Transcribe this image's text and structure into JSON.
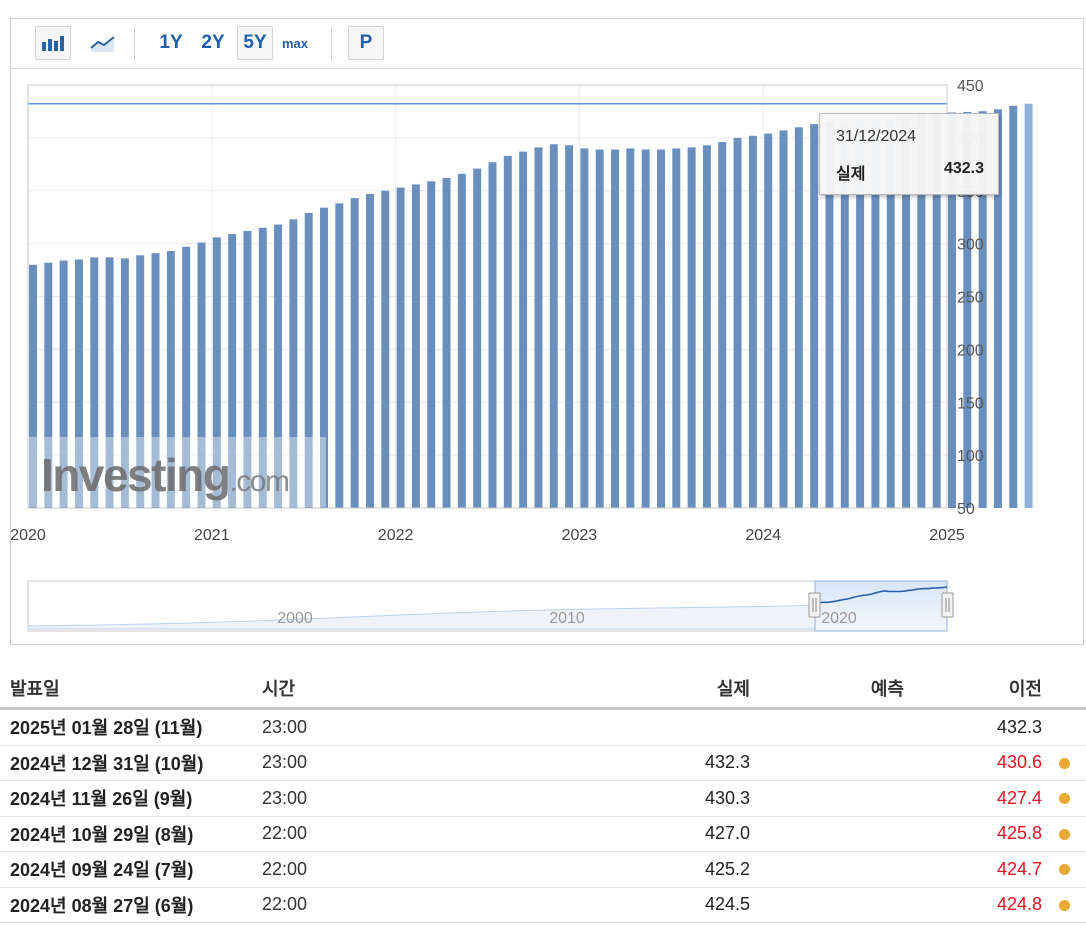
{
  "toolbar": {
    "buttons": [
      "1Y",
      "2Y",
      "5Y",
      "max",
      "P"
    ],
    "active": "5Y",
    "icons": [
      "bar-chart-icon",
      "line-chart-icon"
    ]
  },
  "chart_data": {
    "type": "bar",
    "title": "",
    "xlabel": "",
    "ylabel": "",
    "ylim": [
      50,
      450
    ],
    "yticks": [
      50,
      100,
      150,
      200,
      250,
      300,
      350,
      400,
      450
    ],
    "xticks": [
      "2020",
      "2021",
      "2022",
      "2023",
      "2024",
      "2025"
    ],
    "x_start": "2020-01",
    "reference_line": 432.3,
    "values": [
      280,
      282,
      284,
      285,
      287,
      287,
      286,
      289,
      291,
      293,
      297,
      301,
      306,
      309,
      312,
      315,
      318,
      323,
      329,
      334,
      338,
      343,
      347,
      350,
      353,
      356,
      359,
      362,
      366,
      371,
      377,
      383,
      387,
      391,
      394,
      393,
      390,
      389,
      389,
      390,
      389,
      389,
      390,
      391,
      393,
      396,
      400,
      402,
      404,
      407,
      410,
      413,
      415,
      416,
      417,
      417,
      417,
      420,
      422,
      423,
      424,
      424.5,
      425.2,
      427.0,
      430.3,
      432.3
    ],
    "tooltip": {
      "date": "31/12/2024",
      "label": "실제",
      "value": "432.3"
    },
    "navigator": {
      "labels": [
        "2000",
        "2010",
        "2020"
      ]
    },
    "watermark": "Investing.com",
    "bar_color": "#6a8fbd"
  },
  "table": {
    "headers": {
      "date": "발표일",
      "time": "시간",
      "actual": "실제",
      "forecast": "예측",
      "previous": "이전"
    },
    "rows": [
      {
        "date": "2025년 01월 28일 (11월)",
        "time": "23:00",
        "actual": "",
        "forecast": "",
        "previous": "432.3",
        "prev_red": false,
        "dot": false
      },
      {
        "date": "2024년 12월 31일 (10월)",
        "time": "23:00",
        "actual": "432.3",
        "forecast": "",
        "previous": "430.6",
        "prev_red": true,
        "dot": true
      },
      {
        "date": "2024년 11월 26일 (9월)",
        "time": "23:00",
        "actual": "430.3",
        "forecast": "",
        "previous": "427.4",
        "prev_red": true,
        "dot": true
      },
      {
        "date": "2024년 10월 29일 (8월)",
        "time": "22:00",
        "actual": "427.0",
        "forecast": "",
        "previous": "425.8",
        "prev_red": true,
        "dot": true
      },
      {
        "date": "2024년 09월 24일 (7월)",
        "time": "22:00",
        "actual": "425.2",
        "forecast": "",
        "previous": "424.7",
        "prev_red": true,
        "dot": true
      },
      {
        "date": "2024년 08월 27일 (6월)",
        "time": "22:00",
        "actual": "424.5",
        "forecast": "",
        "previous": "424.8",
        "prev_red": true,
        "dot": true
      }
    ]
  }
}
